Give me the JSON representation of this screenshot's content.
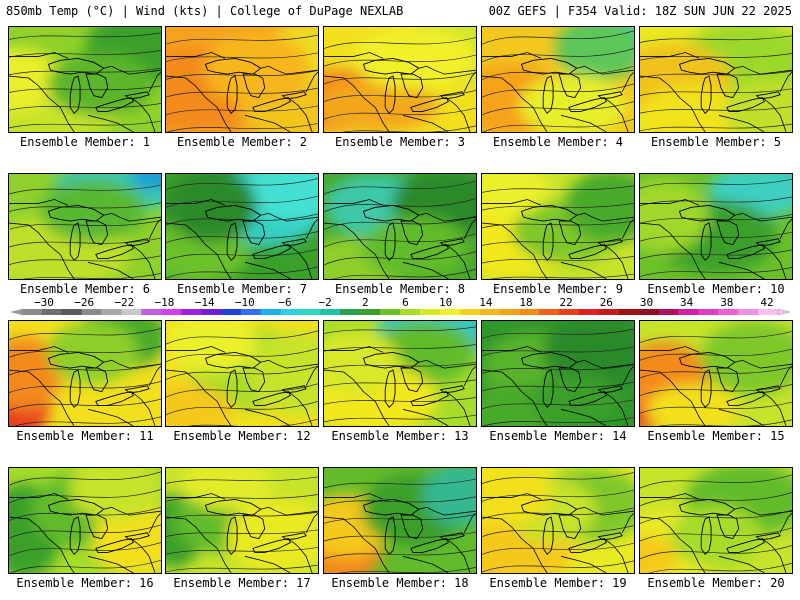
{
  "header": {
    "left": "850mb Temp (°C) | Wind (kts) | College of DuPage NEXLAB",
    "right": "00Z GEFS | F354 Valid: 18Z SUN JUN 22 2025"
  },
  "panels": [
    {
      "label": "Ensemble Member: 1",
      "bg": "#8fd12a",
      "blobs": [
        [
          "#c7e32a",
          0.25,
          0.75,
          0.5,
          0.35
        ],
        [
          "#3aa02a",
          0.85,
          0.2,
          0.35,
          0.35
        ],
        [
          "#e9ef2a",
          0.05,
          0.5,
          0.3,
          0.3
        ],
        [
          "#5cb52a",
          0.6,
          0.55,
          0.35,
          0.3
        ]
      ]
    },
    {
      "label": "Ensemble Member: 2",
      "bg": "#f5a31e",
      "blobs": [
        [
          "#f38a1c",
          0.2,
          0.6,
          0.5,
          0.4
        ],
        [
          "#f2c41e",
          0.85,
          0.8,
          0.35,
          0.3
        ],
        [
          "#eedd22",
          0.9,
          0.25,
          0.25,
          0.3
        ],
        [
          "#f7b61e",
          0.6,
          0.4,
          0.35,
          0.35
        ]
      ]
    },
    {
      "label": "Ensemble Member: 3",
      "bg": "#f2e01e",
      "blobs": [
        [
          "#f38a1c",
          0.1,
          0.7,
          0.45,
          0.3
        ],
        [
          "#f3a81e",
          0.35,
          0.75,
          0.4,
          0.25
        ],
        [
          "#cfe52a",
          0.85,
          0.2,
          0.35,
          0.35
        ],
        [
          "#f1f02a",
          0.6,
          0.3,
          0.4,
          0.3
        ]
      ]
    },
    {
      "label": "Ensemble Member: 4",
      "bg": "#f2c81e",
      "blobs": [
        [
          "#33d9c8",
          0.95,
          0.05,
          0.3,
          0.3
        ],
        [
          "#5cc65a",
          0.78,
          0.2,
          0.3,
          0.3
        ],
        [
          "#f6a31e",
          0.2,
          0.7,
          0.45,
          0.35
        ],
        [
          "#e8ee2a",
          0.6,
          0.75,
          0.35,
          0.3
        ]
      ]
    },
    {
      "label": "Ensemble Member: 5",
      "bg": "#e8ea22",
      "blobs": [
        [
          "#9cd82a",
          0.7,
          0.35,
          0.45,
          0.4
        ],
        [
          "#f1c21e",
          0.2,
          0.5,
          0.4,
          0.35
        ],
        [
          "#f2e21e",
          0.35,
          0.85,
          0.35,
          0.3
        ],
        [
          "#c0e02a",
          0.85,
          0.8,
          0.3,
          0.3
        ]
      ]
    },
    {
      "label": "Ensemble Member: 6",
      "bg": "#8fd12a",
      "blobs": [
        [
          "#36c9b4",
          0.75,
          0.1,
          0.45,
          0.25
        ],
        [
          "#1a9ad8",
          0.95,
          0.02,
          0.15,
          0.12
        ],
        [
          "#bfe02a",
          0.3,
          0.75,
          0.5,
          0.35
        ],
        [
          "#59b832",
          0.55,
          0.35,
          0.35,
          0.3
        ]
      ]
    },
    {
      "label": "Ensemble Member: 7",
      "bg": "#3aa02a",
      "blobs": [
        [
          "#35cfc2",
          0.65,
          0.3,
          0.4,
          0.4
        ],
        [
          "#44e0d4",
          0.85,
          0.15,
          0.35,
          0.3
        ],
        [
          "#6cc02a",
          0.2,
          0.75,
          0.35,
          0.3
        ],
        [
          "#2a8a2a",
          0.3,
          0.3,
          0.3,
          0.35
        ]
      ]
    },
    {
      "label": "Ensemble Member: 8",
      "bg": "#48aa2a",
      "blobs": [
        [
          "#3ec8a8",
          0.35,
          0.3,
          0.35,
          0.3
        ],
        [
          "#2a8a2a",
          0.8,
          0.3,
          0.35,
          0.35
        ],
        [
          "#8ecf2a",
          0.2,
          0.85,
          0.4,
          0.25
        ],
        [
          "#62bb2a",
          0.6,
          0.7,
          0.35,
          0.3
        ]
      ]
    },
    {
      "label": "Ensemble Member: 9",
      "bg": "#c7e32a",
      "blobs": [
        [
          "#f2e81e",
          0.2,
          0.6,
          0.45,
          0.4
        ],
        [
          "#7ec82a",
          0.55,
          0.55,
          0.35,
          0.3
        ],
        [
          "#48aa2a",
          0.85,
          0.3,
          0.3,
          0.35
        ],
        [
          "#eaf02a",
          0.15,
          0.15,
          0.3,
          0.25
        ]
      ]
    },
    {
      "label": "Ensemble Member: 10",
      "bg": "#6cc02a",
      "blobs": [
        [
          "#2f7fd8",
          0.97,
          0.02,
          0.2,
          0.12
        ],
        [
          "#3ccfc0",
          0.8,
          0.15,
          0.35,
          0.25
        ],
        [
          "#3aa02a",
          0.5,
          0.6,
          0.4,
          0.35
        ],
        [
          "#9fd82a",
          0.15,
          0.4,
          0.3,
          0.35
        ]
      ]
    },
    {
      "label": "Ensemble Member: 11",
      "bg": "#f2e01e",
      "blobs": [
        [
          "#e8401c",
          0.02,
          0.8,
          0.25,
          0.35
        ],
        [
          "#f38a1c",
          0.1,
          0.5,
          0.25,
          0.35
        ],
        [
          "#4aaa2a",
          0.75,
          0.15,
          0.3,
          0.3
        ],
        [
          "#8ecf2a",
          0.55,
          0.3,
          0.3,
          0.3
        ]
      ]
    },
    {
      "label": "Ensemble Member: 12",
      "bg": "#f2e01e",
      "blobs": [
        [
          "#a8dc2a",
          0.55,
          0.45,
          0.4,
          0.4
        ],
        [
          "#f5c81e",
          0.1,
          0.85,
          0.35,
          0.25
        ],
        [
          "#c7e32a",
          0.85,
          0.5,
          0.3,
          0.4
        ],
        [
          "#eaf02a",
          0.3,
          0.2,
          0.3,
          0.3
        ]
      ]
    },
    {
      "label": "Ensemble Member: 13",
      "bg": "#a8dc2a",
      "blobs": [
        [
          "#35c8c0",
          0.8,
          0.05,
          0.45,
          0.25
        ],
        [
          "#60bb2a",
          0.65,
          0.3,
          0.35,
          0.3
        ],
        [
          "#f2e81e",
          0.3,
          0.75,
          0.45,
          0.35
        ],
        [
          "#d8e82a",
          0.2,
          0.4,
          0.3,
          0.3
        ]
      ]
    },
    {
      "label": "Ensemble Member: 14",
      "bg": "#2f962a",
      "blobs": [
        [
          "#58b42a",
          0.35,
          0.45,
          0.35,
          0.35
        ],
        [
          "#2a8a2a",
          0.75,
          0.3,
          0.35,
          0.35
        ],
        [
          "#48aa2a",
          0.2,
          0.85,
          0.3,
          0.25
        ],
        [
          "#3aa02a",
          0.6,
          0.75,
          0.3,
          0.25
        ]
      ]
    },
    {
      "label": "Ensemble Member: 15",
      "bg": "#c7e32a",
      "blobs": [
        [
          "#e8401c",
          0.05,
          0.75,
          0.25,
          0.3
        ],
        [
          "#f38a1c",
          0.15,
          0.55,
          0.3,
          0.35
        ],
        [
          "#7ec82a",
          0.75,
          0.35,
          0.35,
          0.35
        ],
        [
          "#f2e01e",
          0.35,
          0.85,
          0.3,
          0.25
        ]
      ]
    },
    {
      "label": "Ensemble Member: 16",
      "bg": "#a8dc2a",
      "blobs": [
        [
          "#3aa02a",
          0.1,
          0.6,
          0.25,
          0.45
        ],
        [
          "#62bb2a",
          0.45,
          0.4,
          0.3,
          0.35
        ],
        [
          "#f2e01e",
          0.85,
          0.7,
          0.3,
          0.35
        ],
        [
          "#c7e32a",
          0.7,
          0.2,
          0.3,
          0.3
        ]
      ]
    },
    {
      "label": "Ensemble Member: 17",
      "bg": "#c7e32a",
      "blobs": [
        [
          "#3aa02a",
          0.05,
          0.6,
          0.2,
          0.35
        ],
        [
          "#62bb2a",
          0.35,
          0.5,
          0.3,
          0.3
        ],
        [
          "#eaea22",
          0.75,
          0.65,
          0.35,
          0.35
        ],
        [
          "#e0ec2a",
          0.4,
          0.15,
          0.3,
          0.25
        ]
      ]
    },
    {
      "label": "Ensemble Member: 18",
      "bg": "#62bb2a",
      "blobs": [
        [
          "#f38a1c",
          0.08,
          0.8,
          0.3,
          0.3
        ],
        [
          "#f5c81e",
          0.15,
          0.55,
          0.3,
          0.3
        ],
        [
          "#3aa02a",
          0.6,
          0.4,
          0.35,
          0.35
        ],
        [
          "#35b890",
          0.9,
          0.25,
          0.25,
          0.3
        ]
      ]
    },
    {
      "label": "Ensemble Member: 19",
      "bg": "#eaea22",
      "blobs": [
        [
          "#7ec82a",
          0.7,
          0.35,
          0.4,
          0.35
        ],
        [
          "#f5c81e",
          0.2,
          0.8,
          0.4,
          0.3
        ],
        [
          "#c7e32a",
          0.45,
          0.4,
          0.3,
          0.3
        ],
        [
          "#f2e01e",
          0.15,
          0.25,
          0.3,
          0.3
        ]
      ]
    },
    {
      "label": "Ensemble Member: 20",
      "bg": "#c7e32a",
      "blobs": [
        [
          "#62bb2a",
          0.7,
          0.3,
          0.4,
          0.35
        ],
        [
          "#eaea22",
          0.2,
          0.75,
          0.4,
          0.35
        ],
        [
          "#f5c81e",
          0.05,
          0.85,
          0.2,
          0.2
        ],
        [
          "#a8dc2a",
          0.5,
          0.65,
          0.3,
          0.3
        ]
      ]
    }
  ],
  "colorbar": {
    "ticks": [
      "−30",
      "−26",
      "−22",
      "−18",
      "−14",
      "−10",
      "−6",
      "−2",
      "2",
      "6",
      "10",
      "14",
      "18",
      "22",
      "26",
      "30",
      "34",
      "38",
      "42"
    ],
    "colors": [
      "#8a8a8a",
      "#6e6e6e",
      "#5a5a5a",
      "#8a8a8a",
      "#a8a8a8",
      "#c8c8c8",
      "#c060e0",
      "#d040f0",
      "#a020e0",
      "#7020d0",
      "#2040e0",
      "#3070f0",
      "#20b0f0",
      "#30d0e0",
      "#30d8c0",
      "#20c0a0",
      "#2aa050",
      "#3aa02a",
      "#6cc02a",
      "#a8dc2a",
      "#d8ea22",
      "#f2f02a",
      "#f2d01e",
      "#f5b81e",
      "#f5a01e",
      "#f38a1c",
      "#f0601c",
      "#e8401c",
      "#e02020",
      "#c81818",
      "#a01010",
      "#901020",
      "#b01060",
      "#d020a0",
      "#e040c0",
      "#f060d0",
      "#f090e0",
      "#f8c0f0"
    ]
  }
}
